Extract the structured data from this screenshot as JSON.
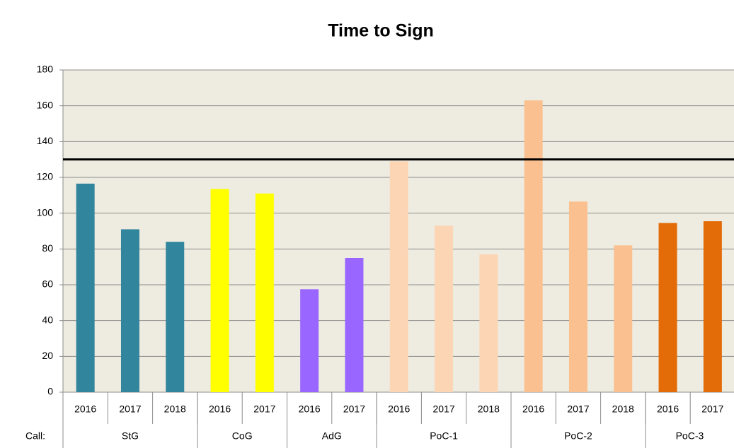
{
  "chart_data": {
    "type": "bar",
    "title": "Time to Sign",
    "row_label": "Call:",
    "groups": [
      {
        "name": "StG",
        "color": "#31859c",
        "categories": [
          "2016",
          "2017",
          "2018"
        ],
        "values": [
          116.5,
          91,
          84
        ]
      },
      {
        "name": "CoG",
        "color": "#ffff00",
        "categories": [
          "2016",
          "2017"
        ],
        "values": [
          113.5,
          111
        ]
      },
      {
        "name": "AdG",
        "color": "#9966ff",
        "categories": [
          "2016",
          "2017"
        ],
        "values": [
          57.5,
          75
        ]
      },
      {
        "name": "PoC-1",
        "color": "#fcd5b5",
        "categories": [
          "2016",
          "2017",
          "2018"
        ],
        "values": [
          129,
          93,
          77
        ]
      },
      {
        "name": "PoC-2",
        "color": "#fac090",
        "categories": [
          "2016",
          "2017",
          "2018"
        ],
        "values": [
          163,
          106.5,
          82
        ]
      },
      {
        "name": "PoC-3",
        "color": "#e36c09",
        "categories": [
          "2016",
          "2017"
        ],
        "values": [
          94.5,
          95.5
        ]
      }
    ],
    "reference_line": 130,
    "ylim": [
      0,
      180
    ],
    "yticks": [
      0,
      20,
      40,
      60,
      80,
      100,
      120,
      140,
      160,
      180
    ],
    "grid": true
  }
}
